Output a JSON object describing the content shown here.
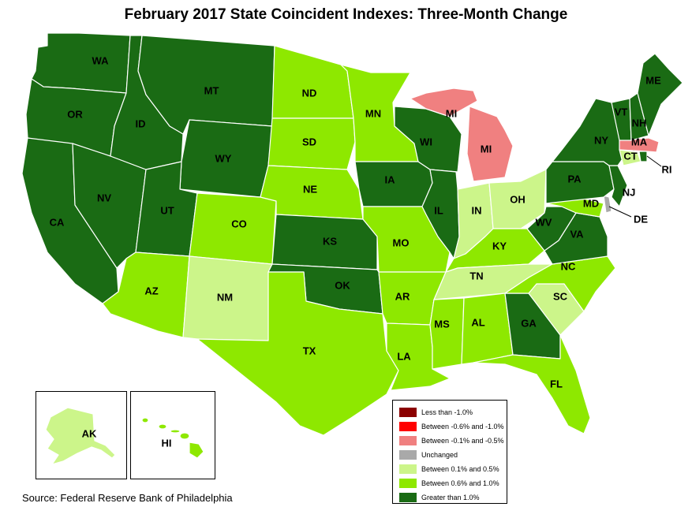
{
  "title": "February 2017 State Coincident Indexes: Three-Month Change",
  "source": "Source: Federal Reserve Bank of Philadelphia",
  "colors": {
    "less_than_neg_1": "#8b0000",
    "neg_0_6_to_neg_1": "#ff0000",
    "neg_0_1_to_neg_0_5": "#f08080",
    "unchanged": "#a9a9a9",
    "pos_0_1_to_0_5": "#ccf58a",
    "pos_0_6_to_1_0": "#8ee800",
    "greater_than_1": "#1a6b14"
  },
  "legend": [
    {
      "label": "Less than -1.0%",
      "category": "less_than_neg_1"
    },
    {
      "label": "Between -0.6% and -1.0%",
      "category": "neg_0_6_to_neg_1"
    },
    {
      "label": "Between -0.1% and -0.5%",
      "category": "neg_0_1_to_neg_0_5"
    },
    {
      "label": "Unchanged",
      "category": "unchanged"
    },
    {
      "label": "Between 0.1% and 0.5%",
      "category": "pos_0_1_to_0_5"
    },
    {
      "label": "Between 0.6% and 1.0%",
      "category": "pos_0_6_to_1_0"
    },
    {
      "label": "Greater than 1.0%",
      "category": "greater_than_1"
    }
  ],
  "states": [
    {
      "abbr": "WA",
      "category": "greater_than_1"
    },
    {
      "abbr": "OR",
      "category": "greater_than_1"
    },
    {
      "abbr": "CA",
      "category": "greater_than_1"
    },
    {
      "abbr": "NV",
      "category": "greater_than_1"
    },
    {
      "abbr": "ID",
      "category": "greater_than_1"
    },
    {
      "abbr": "MT",
      "category": "greater_than_1"
    },
    {
      "abbr": "WY",
      "category": "greater_than_1"
    },
    {
      "abbr": "UT",
      "category": "greater_than_1"
    },
    {
      "abbr": "AZ",
      "category": "pos_0_6_to_1_0"
    },
    {
      "abbr": "CO",
      "category": "pos_0_6_to_1_0"
    },
    {
      "abbr": "NM",
      "category": "pos_0_1_to_0_5"
    },
    {
      "abbr": "ND",
      "category": "pos_0_6_to_1_0"
    },
    {
      "abbr": "SD",
      "category": "pos_0_6_to_1_0"
    },
    {
      "abbr": "NE",
      "category": "pos_0_6_to_1_0"
    },
    {
      "abbr": "KS",
      "category": "greater_than_1"
    },
    {
      "abbr": "OK",
      "category": "greater_than_1"
    },
    {
      "abbr": "TX",
      "category": "pos_0_6_to_1_0"
    },
    {
      "abbr": "MN",
      "category": "pos_0_6_to_1_0"
    },
    {
      "abbr": "IA",
      "category": "greater_than_1"
    },
    {
      "abbr": "MO",
      "category": "pos_0_6_to_1_0"
    },
    {
      "abbr": "AR",
      "category": "pos_0_6_to_1_0"
    },
    {
      "abbr": "LA",
      "category": "pos_0_6_to_1_0"
    },
    {
      "abbr": "WI",
      "category": "greater_than_1"
    },
    {
      "abbr": "IL",
      "category": "greater_than_1"
    },
    {
      "abbr": "MI",
      "category": "neg_0_1_to_neg_0_5"
    },
    {
      "abbr": "IN",
      "category": "pos_0_1_to_0_5"
    },
    {
      "abbr": "OH",
      "category": "pos_0_1_to_0_5"
    },
    {
      "abbr": "KY",
      "category": "pos_0_6_to_1_0"
    },
    {
      "abbr": "TN",
      "category": "pos_0_1_to_0_5"
    },
    {
      "abbr": "MS",
      "category": "pos_0_6_to_1_0"
    },
    {
      "abbr": "AL",
      "category": "pos_0_6_to_1_0"
    },
    {
      "abbr": "GA",
      "category": "greater_than_1"
    },
    {
      "abbr": "FL",
      "category": "pos_0_6_to_1_0"
    },
    {
      "abbr": "SC",
      "category": "pos_0_1_to_0_5"
    },
    {
      "abbr": "NC",
      "category": "pos_0_6_to_1_0"
    },
    {
      "abbr": "VA",
      "category": "greater_than_1"
    },
    {
      "abbr": "WV",
      "category": "greater_than_1"
    },
    {
      "abbr": "MD",
      "category": "pos_0_6_to_1_0"
    },
    {
      "abbr": "DE",
      "category": "unchanged"
    },
    {
      "abbr": "PA",
      "category": "greater_than_1"
    },
    {
      "abbr": "NJ",
      "category": "greater_than_1"
    },
    {
      "abbr": "NY",
      "category": "greater_than_1"
    },
    {
      "abbr": "CT",
      "category": "pos_0_1_to_0_5"
    },
    {
      "abbr": "RI",
      "category": "greater_than_1"
    },
    {
      "abbr": "MA",
      "category": "neg_0_1_to_neg_0_5"
    },
    {
      "abbr": "VT",
      "category": "greater_than_1"
    },
    {
      "abbr": "NH",
      "category": "greater_than_1"
    },
    {
      "abbr": "ME",
      "category": "greater_than_1"
    },
    {
      "abbr": "AK",
      "category": "pos_0_1_to_0_5"
    },
    {
      "abbr": "HI",
      "category": "pos_0_6_to_1_0"
    }
  ]
}
